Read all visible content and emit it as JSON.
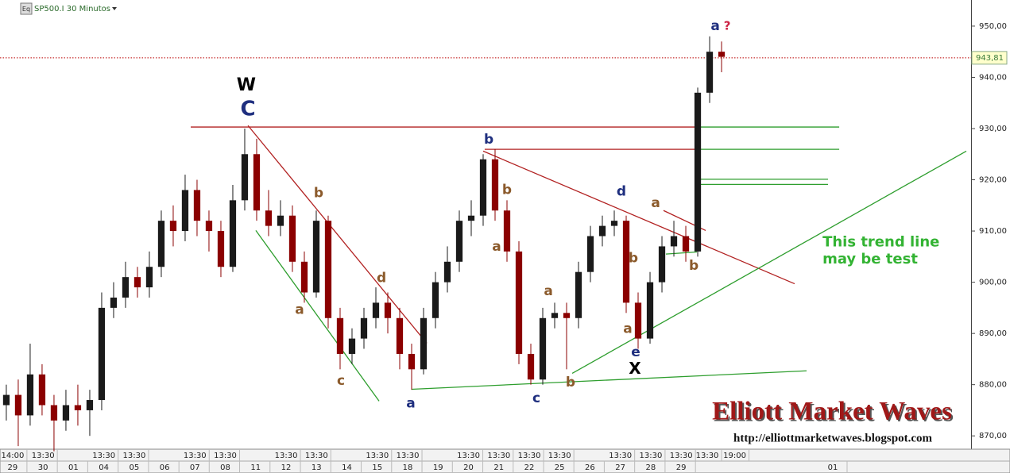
{
  "chart_data": {
    "type": "candlestick",
    "symbol": "SP500.I 30 Minutos",
    "icon_label": "Eq",
    "watermark": "Elliott Market Waves",
    "url": "http://elliottmarketwaves.blogspot.com",
    "up_color": "#1a1a1a",
    "down_color": "#8b0000",
    "open": [
      876,
      878,
      874,
      882,
      876,
      873,
      876,
      875,
      877,
      895,
      897,
      901,
      899,
      903,
      912,
      910,
      918,
      912,
      910,
      903,
      916,
      925,
      914,
      911,
      913,
      904,
      898,
      912,
      893,
      886,
      889,
      893,
      896,
      893,
      886,
      883,
      893,
      900,
      904,
      912,
      913,
      924,
      914,
      906,
      886,
      881,
      893,
      894,
      893,
      902,
      909,
      911,
      912,
      896,
      889,
      900,
      907,
      909,
      906,
      937,
      945
    ],
    "high": [
      880,
      881,
      888,
      884,
      878,
      879,
      880,
      879,
      898,
      900,
      904,
      903,
      906,
      914,
      915,
      921,
      920,
      914,
      912,
      919,
      930,
      928,
      918,
      916,
      915,
      906,
      914,
      913,
      895,
      891,
      895,
      899,
      898,
      895,
      888,
      895,
      902,
      907,
      914,
      916,
      925,
      926,
      916,
      908,
      888,
      895,
      896,
      896,
      904,
      911,
      913,
      914,
      913,
      898,
      902,
      909,
      912,
      911,
      938,
      948,
      947
    ],
    "low": [
      873,
      868,
      872,
      874,
      867,
      871,
      872,
      870,
      875,
      893,
      895,
      897,
      897,
      901,
      907,
      908,
      909,
      906,
      901,
      902,
      914,
      912,
      909,
      909,
      902,
      896,
      897,
      891,
      883,
      884,
      887,
      891,
      890,
      883,
      879,
      882,
      891,
      898,
      902,
      909,
      911,
      912,
      904,
      884,
      880,
      880,
      891,
      883,
      891,
      900,
      907,
      909,
      894,
      887,
      888,
      898,
      905,
      904,
      905,
      935,
      941
    ],
    "close": [
      878,
      874,
      882,
      876,
      873,
      876,
      875,
      877,
      895,
      897,
      901,
      899,
      903,
      912,
      910,
      918,
      912,
      910,
      903,
      916,
      925,
      914,
      911,
      913,
      904,
      898,
      912,
      893,
      886,
      889,
      893,
      896,
      893,
      886,
      883,
      893,
      900,
      904,
      912,
      913,
      924,
      914,
      906,
      886,
      881,
      893,
      894,
      893,
      902,
      909,
      911,
      912,
      896,
      889,
      900,
      907,
      909,
      906,
      937,
      945,
      944
    ],
    "xlim": [
      -0.53,
      80.93
    ],
    "ylim": [
      867.4,
      955.1
    ],
    "yticks": [
      {
        "value": 870,
        "label": "870,00"
      },
      {
        "value": 880,
        "label": "880,00"
      },
      {
        "value": 890,
        "label": "890,00"
      },
      {
        "value": 900,
        "label": "900,00"
      },
      {
        "value": 910,
        "label": "910,00"
      },
      {
        "value": 920,
        "label": "920,00"
      },
      {
        "value": 930,
        "label": "930,00"
      },
      {
        "value": 940,
        "label": "940,00"
      },
      {
        "value": 950,
        "label": "950,00"
      }
    ],
    "xticks": [
      {
        "value": 0.53,
        "label": "29"
      },
      {
        "value": 3.08,
        "label": "30"
      },
      {
        "value": 5.63,
        "label": "01"
      },
      {
        "value": 8.18,
        "label": "04"
      },
      {
        "value": 10.73,
        "label": "05"
      },
      {
        "value": 13.28,
        "label": "06"
      },
      {
        "value": 15.82,
        "label": "07"
      },
      {
        "value": 18.37,
        "label": "08"
      },
      {
        "value": 20.92,
        "label": "11"
      },
      {
        "value": 23.47,
        "label": "12"
      },
      {
        "value": 26.02,
        "label": "13"
      },
      {
        "value": 28.57,
        "label": "14"
      },
      {
        "value": 31.12,
        "label": "15"
      },
      {
        "value": 33.67,
        "label": "18"
      },
      {
        "value": 36.22,
        "label": "19"
      },
      {
        "value": 38.77,
        "label": "20"
      },
      {
        "value": 41.32,
        "label": "21"
      },
      {
        "value": 43.87,
        "label": "22"
      },
      {
        "value": 46.41,
        "label": "25"
      },
      {
        "value": 48.96,
        "label": "26"
      },
      {
        "value": 51.51,
        "label": "27"
      },
      {
        "value": 54.06,
        "label": "28"
      },
      {
        "value": 56.61,
        "label": "29"
      },
      {
        "value": 69.33,
        "label": "01"
      }
    ],
    "xticks_top": [
      {
        "value": 0.53,
        "label": "14:00"
      },
      {
        "value": 3.08,
        "label": "13:30"
      },
      {
        "value": 8.18,
        "label": "13:30"
      },
      {
        "value": 10.73,
        "label": "13:30"
      },
      {
        "value": 15.82,
        "label": "13:30"
      },
      {
        "value": 18.37,
        "label": "13:30"
      },
      {
        "value": 23.47,
        "label": "13:30"
      },
      {
        "value": 26.02,
        "label": "13:30"
      },
      {
        "value": 31.12,
        "label": "13:30"
      },
      {
        "value": 33.67,
        "label": "13:30"
      },
      {
        "value": 38.77,
        "label": "13:30"
      },
      {
        "value": 41.32,
        "label": "13:30"
      },
      {
        "value": 43.87,
        "label": "13:30"
      },
      {
        "value": 46.41,
        "label": "13:30"
      },
      {
        "value": 51.51,
        "label": "13:30"
      },
      {
        "value": 54.06,
        "label": "13:30"
      },
      {
        "value": 56.61,
        "label": "13:30"
      },
      {
        "value": 58.8,
        "label": "13:30"
      },
      {
        "value": 61.1,
        "label": "19:00"
      }
    ],
    "last_price": {
      "value": 943.81,
      "label": "943,81"
    },
    "lines": [
      {
        "color": "#b22222",
        "x": [
          15.47,
          57.8
        ],
        "y": [
          930.3,
          930.3
        ]
      },
      {
        "color": "#2e9e2e",
        "x": [
          57.8,
          69.87
        ],
        "y": [
          930.3,
          930.3
        ]
      },
      {
        "color": "#b22222",
        "x": [
          40.13,
          57.8
        ],
        "y": [
          925.95,
          925.95
        ]
      },
      {
        "color": "#2e9e2e",
        "x": [
          57.8,
          69.87
        ],
        "y": [
          925.95,
          925.95
        ]
      },
      {
        "color": "#2e9e2e",
        "x": [
          57.8,
          68.93
        ],
        "y": [
          920.1,
          920.1
        ]
      },
      {
        "color": "#2e9e2e",
        "x": [
          57.8,
          68.93
        ],
        "y": [
          919.1,
          919.1
        ]
      },
      {
        "color": "#b22222",
        "x": [
          20.27,
          35.27
        ],
        "y": [
          930.6,
          888.1
        ]
      },
      {
        "color": "#2e9e2e",
        "x": [
          20.93,
          31.27
        ],
        "y": [
          910.1,
          876.8
        ]
      },
      {
        "color": "#2e9e2e",
        "x": [
          34,
          67.13
        ],
        "y": [
          879.1,
          882.7
        ]
      },
      {
        "color": "#b22222",
        "x": [
          40,
          66.13
        ],
        "y": [
          925.6,
          899.7
        ]
      },
      {
        "color": "#2e9e2e",
        "x": [
          47.47,
          80.53
        ],
        "y": [
          882.2,
          925.6
        ]
      },
      {
        "color": "#b22222",
        "x": [
          55.13,
          58.67
        ],
        "y": [
          914.0,
          910.1
        ]
      },
      {
        "color": "#2e9e2e",
        "x": [
          55.33,
          57.93
        ],
        "y": [
          905.5,
          905.9
        ]
      }
    ],
    "annotations": [
      {
        "text": "W",
        "x": 20.13,
        "y": 938.4,
        "color": "#000000",
        "size": 22
      },
      {
        "text": "C",
        "x": 20.27,
        "y": 933.7,
        "color": "#1f2f7f",
        "size": 26
      },
      {
        "text": "b",
        "x": 26.2,
        "y": 917.4,
        "color": "#8b5a2b",
        "size": 17
      },
      {
        "text": "a",
        "x": 24.6,
        "y": 894.6,
        "color": "#8b5a2b",
        "size": 17
      },
      {
        "text": "c",
        "x": 28.07,
        "y": 880.7,
        "color": "#8b5a2b",
        "size": 17
      },
      {
        "text": "d",
        "x": 31.47,
        "y": 900.8,
        "color": "#8b5a2b",
        "size": 17
      },
      {
        "text": "a",
        "x": 33.93,
        "y": 876.3,
        "color": "#1f2f7f",
        "size": 17
      },
      {
        "text": "b",
        "x": 40.47,
        "y": 927.8,
        "color": "#1f2f7f",
        "size": 17
      },
      {
        "text": "b",
        "x": 42,
        "y": 918.0,
        "color": "#8b5a2b",
        "size": 17
      },
      {
        "text": "a",
        "x": 41.13,
        "y": 906.9,
        "color": "#8b5a2b",
        "size": 17
      },
      {
        "text": "c",
        "x": 44.47,
        "y": 877.3,
        "color": "#1f2f7f",
        "size": 17
      },
      {
        "text": "a",
        "x": 45.47,
        "y": 898.2,
        "color": "#8b5a2b",
        "size": 17
      },
      {
        "text": "b",
        "x": 47.33,
        "y": 880.4,
        "color": "#8b5a2b",
        "size": 17
      },
      {
        "text": "d",
        "x": 51.6,
        "y": 917.7,
        "color": "#1f2f7f",
        "size": 17
      },
      {
        "text": "a",
        "x": 54.47,
        "y": 915.4,
        "color": "#8b5a2b",
        "size": 17
      },
      {
        "text": "b",
        "x": 52.6,
        "y": 904.7,
        "color": "#8b5a2b",
        "size": 17
      },
      {
        "text": "a",
        "x": 52.13,
        "y": 890.9,
        "color": "#8b5a2b",
        "size": 17
      },
      {
        "text": "e",
        "x": 52.8,
        "y": 886.3,
        "color": "#1f2f7f",
        "size": 17
      },
      {
        "text": "X",
        "x": 52.73,
        "y": 883.0,
        "color": "#000000",
        "size": 20
      },
      {
        "text": "b",
        "x": 57.67,
        "y": 903.2,
        "color": "#8b5a2b",
        "size": 17
      },
      {
        "text": "a",
        "x": 59.47,
        "y": 950.0,
        "color": "#1f2f7f",
        "size": 17
      },
      {
        "text": "?",
        "x": 60.47,
        "y": 950.0,
        "color": "#cc2244",
        "size": 15
      },
      {
        "text": "This trend line",
        "x": 68.47,
        "y": 907.8,
        "color": "#33b333",
        "size": 18
      },
      {
        "text": "may be test",
        "x": 68.47,
        "y": 904.4,
        "color": "#33b333",
        "size": 18
      }
    ]
  }
}
